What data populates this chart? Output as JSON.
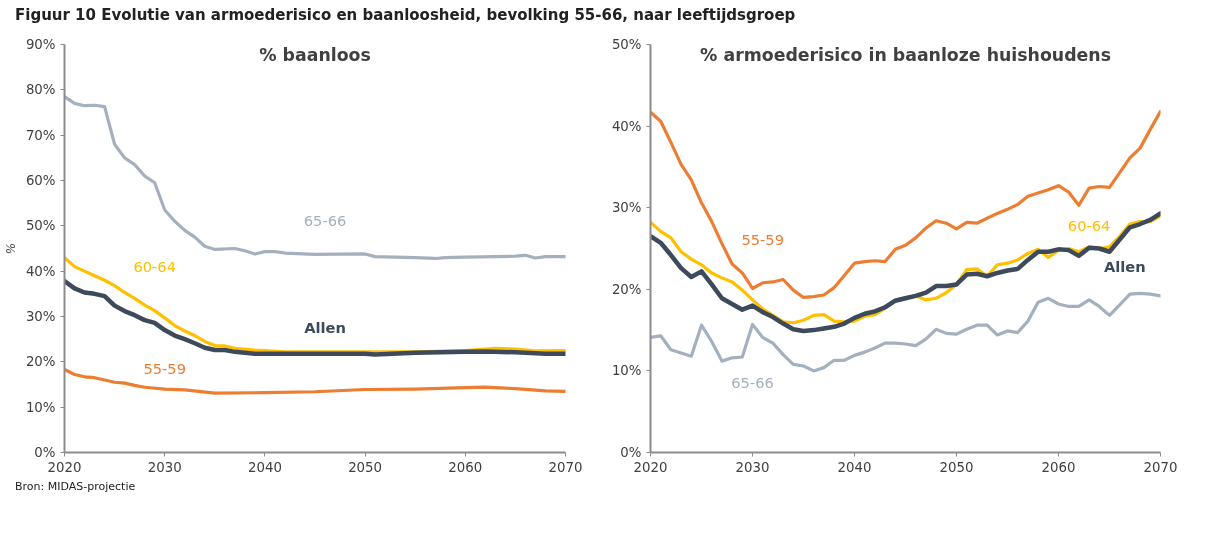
{
  "chart_data": [
    {
      "type": "line",
      "title": "Figuur 10    Evolutie van armoederisico en baanloosheid, bevolking 55-66, naar leeftijdsgroep",
      "subtitle": "% baanloos",
      "ylabel": "%",
      "annotations": [
        "Bron: MIDAS-projectie"
      ],
      "xlim": [
        2020,
        2070
      ],
      "xticks": [
        2020,
        2030,
        2040,
        2050,
        2060,
        2070
      ],
      "ylim": [
        0,
        90
      ],
      "yticks": [
        {
          "value": 0,
          "label": "0%"
        },
        {
          "value": 10,
          "label": "10%"
        },
        {
          "value": 20,
          "label": "20%"
        },
        {
          "value": 30,
          "label": "30%"
        },
        {
          "value": 40,
          "label": "40%"
        },
        {
          "value": 50,
          "label": "50%"
        },
        {
          "value": 60,
          "label": "60%"
        },
        {
          "value": 70,
          "label": "70%"
        },
        {
          "value": 80,
          "label": "80%"
        },
        {
          "value": 90,
          "label": "90%"
        }
      ],
      "grid": false,
      "marker": "none",
      "line_style": "solid",
      "series": [
        {
          "name": "65-66",
          "color": "#a5b0bf",
          "x": [
            2020,
            2021,
            2022,
            2023,
            2024,
            2025,
            2026,
            2027,
            2028,
            2029,
            2030,
            2031,
            2032,
            2033,
            2034,
            2035,
            2037,
            2038,
            2039,
            2040,
            2041,
            2042,
            2045,
            2050,
            2051,
            2055,
            2057,
            2058,
            2060,
            2065,
            2066,
            2067,
            2068,
            2070
          ],
          "values": [
            78.5,
            77,
            76.5,
            76.6,
            76.3,
            68,
            65,
            63.5,
            61,
            59.5,
            53.5,
            51,
            49,
            47.5,
            45.5,
            44.8,
            45,
            44.5,
            43.8,
            44.3,
            44.3,
            44,
            43.7,
            43.8,
            43.2,
            43,
            42.8,
            43,
            43.1,
            43.3,
            43.5,
            42.9,
            43.2,
            43.2
          ]
        },
        {
          "name": "60-64",
          "color": "#ffc000",
          "x": [
            2020,
            2021,
            2022,
            2023,
            2024,
            2025,
            2026,
            2027,
            2028,
            2029,
            2030,
            2031,
            2032,
            2033,
            2034,
            2035,
            2036,
            2037,
            2039,
            2040,
            2042,
            2050,
            2055,
            2060,
            2063,
            2065,
            2067,
            2070
          ],
          "values": [
            43,
            41,
            40,
            39,
            38,
            36.8,
            35.3,
            34,
            32.5,
            31.3,
            29.7,
            28,
            26.8,
            25.8,
            24.5,
            23.6,
            23.5,
            23,
            22.6,
            22.5,
            22.2,
            22.2,
            22.2,
            22.5,
            23,
            22.8,
            22.4,
            22.5
          ]
        },
        {
          "name": "Allen",
          "color": "#3d4a5c",
          "x": [
            2020,
            2021,
            2022,
            2023,
            2024,
            2025,
            2026,
            2027,
            2028,
            2029,
            2030,
            2031,
            2032,
            2033,
            2034,
            2035,
            2036,
            2037,
            2039,
            2045,
            2050,
            2051,
            2055,
            2060,
            2062,
            2065,
            2068,
            2070
          ],
          "values": [
            37.8,
            36.2,
            35.3,
            35,
            34.5,
            32.4,
            31.2,
            30.3,
            29.2,
            28.6,
            27,
            25.8,
            25,
            24.1,
            23.1,
            22.6,
            22.6,
            22.2,
            21.8,
            21.8,
            21.8,
            21.6,
            22,
            22.2,
            22.3,
            22.1,
            21.8,
            21.8
          ]
        },
        {
          "name": "55-59",
          "color": "#ed7d31",
          "x": [
            2020,
            2021,
            2022,
            2023,
            2024,
            2025,
            2026,
            2027,
            2028,
            2030,
            2032,
            2035,
            2040,
            2045,
            2050,
            2055,
            2060,
            2062,
            2065,
            2068,
            2070
          ],
          "values": [
            18.3,
            17.2,
            16.7,
            16.5,
            16,
            15.5,
            15.3,
            14.8,
            14.4,
            14,
            13.8,
            13.1,
            13.2,
            13.4,
            13.9,
            14,
            14.3,
            14.4,
            14.1,
            13.6,
            13.5
          ]
        }
      ]
    },
    {
      "type": "line",
      "subtitle": "% armoederisico in baanloze huishoudens",
      "xlim": [
        2020,
        2070
      ],
      "xticks": [
        2020,
        2030,
        2040,
        2050,
        2060,
        2070
      ],
      "ylim": [
        0,
        50
      ],
      "yticks": [
        {
          "value": 0,
          "label": "0%"
        },
        {
          "value": 10,
          "label": "10%"
        },
        {
          "value": 20,
          "label": "20%"
        },
        {
          "value": 30,
          "label": "30%"
        },
        {
          "value": 40,
          "label": "40%"
        },
        {
          "value": 50,
          "label": "50%"
        }
      ],
      "grid": false,
      "marker": "none",
      "line_style": "solid",
      "x": [
        2020,
        2021,
        2022,
        2023,
        2024,
        2025,
        2026,
        2027,
        2028,
        2029,
        2030,
        2031,
        2032,
        2033,
        2034,
        2035,
        2036,
        2037,
        2038,
        2039,
        2040,
        2041,
        2042,
        2043,
        2044,
        2045,
        2046,
        2047,
        2048,
        2049,
        2050,
        2051,
        2052,
        2053,
        2054,
        2055,
        2056,
        2057,
        2058,
        2059,
        2060,
        2061,
        2062,
        2063,
        2064,
        2065,
        2066,
        2067,
        2068,
        2069,
        2070
      ],
      "series": [
        {
          "name": "55-59",
          "color": "#ed7d31",
          "values": [
            41.7,
            40.6,
            38,
            35.3,
            33.4,
            30.6,
            28.3,
            25.6,
            23.1,
            22,
            20.1,
            20.8,
            20.9,
            21.2,
            19.9,
            19,
            19.1,
            19.3,
            20.2,
            21.7,
            23.2,
            23.4,
            23.5,
            23.4,
            24.9,
            25.4,
            26.3,
            27.5,
            28.4,
            28.1,
            27.4,
            28.2,
            28.1,
            28.7,
            29.3,
            29.8,
            30.4,
            31.4,
            31.8,
            32.2,
            32.7,
            31.9,
            30.3,
            32.4,
            32.6,
            32.5,
            34.3,
            36.1,
            37.3,
            39.6,
            41.8
          ]
        },
        {
          "name": "60-64",
          "color": "#ffc000",
          "values": [
            28.2,
            27.1,
            26.3,
            24.6,
            23.7,
            23,
            22,
            21.4,
            20.9,
            19.9,
            18.7,
            17.6,
            16.8,
            16,
            15.9,
            16.2,
            16.8,
            16.9,
            16.1,
            16,
            16.1,
            16.7,
            16.9,
            17.7,
            18.7,
            19,
            19.2,
            18.7,
            18.9,
            19.6,
            20.6,
            22.4,
            22.5,
            21.6,
            23,
            23.2,
            23.6,
            24.4,
            24.9,
            23.9,
            24.8,
            25,
            24.6,
            25.2,
            25,
            25.2,
            26.5,
            28,
            28.3,
            28.3,
            29
          ]
        },
        {
          "name": "Allen",
          "color": "#3d4a5c",
          "values": [
            26.5,
            25.7,
            24.2,
            22.6,
            21.5,
            22.2,
            20.6,
            18.9,
            18.2,
            17.5,
            18,
            17.2,
            16.6,
            15.8,
            15.1,
            14.9,
            15,
            15.2,
            15.4,
            15.8,
            16.5,
            17,
            17.3,
            17.8,
            18.6,
            18.9,
            19.2,
            19.6,
            20.4,
            20.4,
            20.6,
            21.8,
            21.9,
            21.6,
            22,
            22.3,
            22.5,
            23.6,
            24.6,
            24.6,
            24.9,
            24.8,
            24.1,
            25.1,
            25,
            24.6,
            26.1,
            27.6,
            28,
            28.5,
            29.3
          ]
        },
        {
          "name": "65-66",
          "color": "#a5b0bf",
          "values": [
            14.1,
            14.3,
            12.6,
            12.2,
            11.8,
            15.6,
            13.6,
            11.2,
            11.6,
            11.7,
            15.7,
            14.1,
            13.4,
            12,
            10.8,
            10.6,
            10,
            10.4,
            11.3,
            11.3,
            11.9,
            12.3,
            12.8,
            13.4,
            13.4,
            13.3,
            13.1,
            13.9,
            15.1,
            14.6,
            14.5,
            15.1,
            15.6,
            15.6,
            14.4,
            14.9,
            14.7,
            16.1,
            18.4,
            18.9,
            18.2,
            17.9,
            17.9,
            18.7,
            17.9,
            16.8,
            18.1,
            19.4,
            19.5,
            19.4,
            19.2
          ]
        }
      ]
    }
  ]
}
